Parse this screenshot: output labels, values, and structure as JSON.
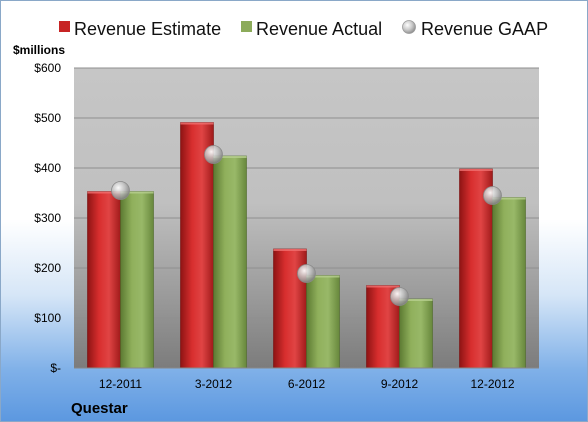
{
  "chart_data": {
    "type": "bar",
    "unit_label": "$millions",
    "company": "Questar",
    "categories": [
      "12-2011",
      "3-2012",
      "6-2012",
      "9-2012",
      "12-2012"
    ],
    "series": [
      {
        "name": "Revenue Estimate",
        "kind": "bar",
        "color": "#d42a2a",
        "values": [
          353,
          491,
          238,
          165,
          398
        ]
      },
      {
        "name": "Revenue Actual",
        "kind": "bar",
        "color": "#8cab5a",
        "values": [
          353,
          424,
          185,
          138,
          341
        ]
      },
      {
        "name": "Revenue GAAP",
        "kind": "marker",
        "color": "#b8b8b8",
        "values": [
          355,
          427,
          189,
          143,
          345
        ]
      }
    ],
    "ylim": [
      0,
      600
    ],
    "yticks": [
      0,
      100,
      200,
      300,
      400,
      500,
      600
    ],
    "ytick_labels": [
      "$-",
      "$100",
      "$200",
      "$300",
      "$400",
      "$500",
      "$600"
    ],
    "grid": true,
    "legend_position": "top"
  }
}
